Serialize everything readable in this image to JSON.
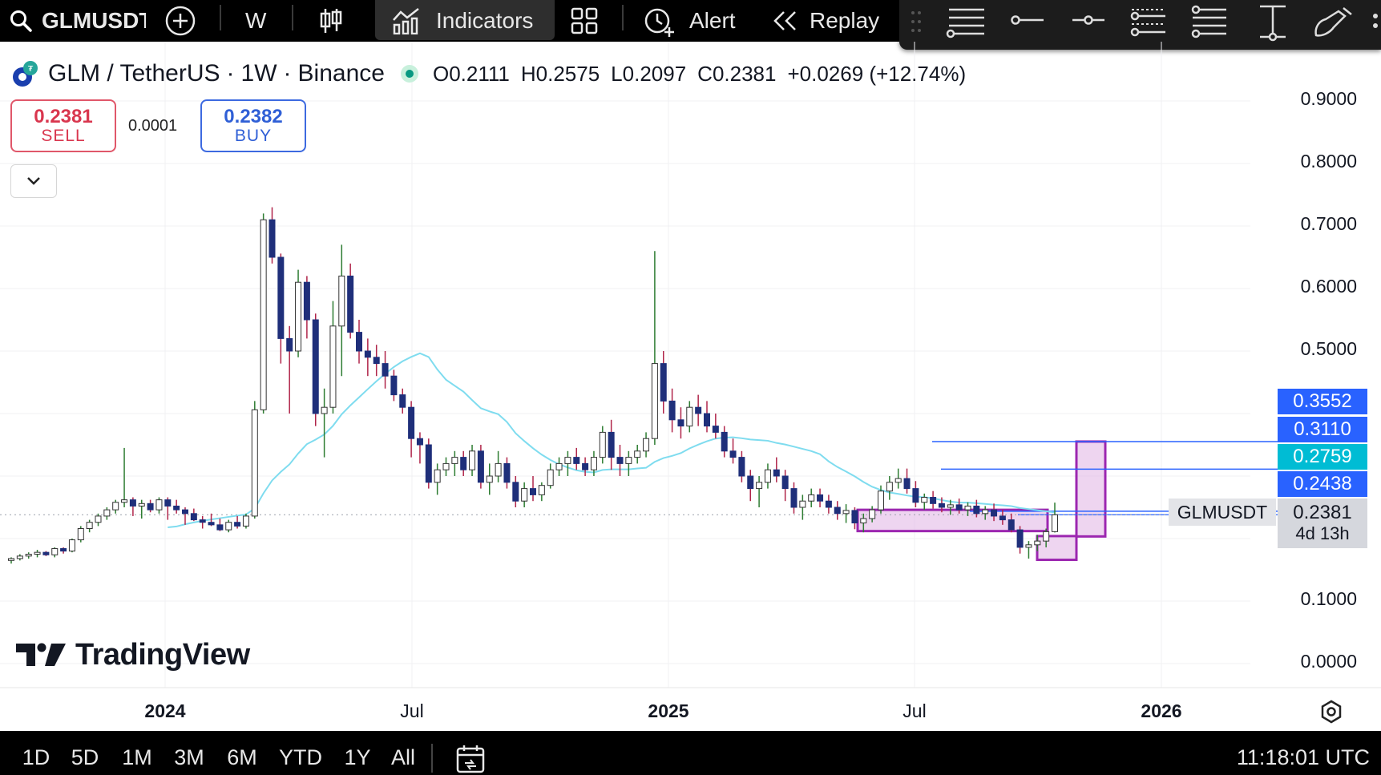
{
  "toolbar": {
    "symbol": "GLMUSDT",
    "interval": "W",
    "indicators_label": "Indicators",
    "alert_label": "Alert",
    "replay_label": "Replay",
    "icons": [
      "search-icon",
      "add-compare-icon",
      "candle-style-icon",
      "indicators-icon",
      "layout-grid-icon",
      "alert-clock-icon",
      "replay-rewind-icon"
    ]
  },
  "drawing_tools": [
    "drag-handle-icon",
    "horizontal-lines-icon",
    "horizontal-ray-icon",
    "horizontal-line-icon",
    "parallel-channel-icon",
    "fib-levels-icon",
    "vertical-ruler-icon",
    "pen-brush-icon"
  ],
  "legend": {
    "pair": "GLM / TetherUS",
    "interval": "1W",
    "exchange": "Binance",
    "separator": "·",
    "open_label": "O",
    "open": "0.2111",
    "high_label": "H",
    "high": "0.2575",
    "low_label": "L",
    "low": "0.2097",
    "close_label": "C",
    "close": "0.2381",
    "change": "+0.0269 (+12.74%)"
  },
  "trade": {
    "sell_price": "0.2381",
    "sell_label": "SELL",
    "spread": "0.0001",
    "buy_price": "0.2382",
    "buy_label": "BUY"
  },
  "price_axis": {
    "labels": [
      "0.9000",
      "0.8000",
      "0.7000",
      "0.6000",
      "0.5000",
      "0.1000",
      "0.0000"
    ],
    "tags": [
      {
        "value": "0.3552",
        "color": "#2962ff"
      },
      {
        "value": "0.3110",
        "color": "#2962ff"
      },
      {
        "value": "0.2759",
        "color": "#00bcd4"
      },
      {
        "value": "0.2438",
        "color": "#2962ff"
      }
    ],
    "symbol_tag": "GLMUSDT",
    "last_price": "0.2381",
    "countdown": "4d 13h"
  },
  "time_axis": {
    "labels": [
      {
        "text": "2024",
        "year": true
      },
      {
        "text": "Jul",
        "year": false
      },
      {
        "text": "2025",
        "year": true
      },
      {
        "text": "Jul",
        "year": false
      },
      {
        "text": "2026",
        "year": true
      }
    ]
  },
  "watermark": "TradingView",
  "bottom": {
    "ranges": [
      "1D",
      "5D",
      "1M",
      "3M",
      "6M",
      "YTD",
      "1Y",
      "All"
    ],
    "time": "11:18:01 UTC"
  },
  "colors": {
    "up_candle": "#ffffff",
    "down_candle": "#1f2f7a",
    "ma_line": "#7fdcef",
    "box_fill": "#e2b9e6",
    "box_stroke": "#9c27b0",
    "level_line": "#2962ff"
  },
  "chart_data": {
    "type": "candlestick",
    "interval": "1W",
    "ylim": [
      0,
      0.9
    ],
    "candles": [
      [
        0.165,
        0.17,
        0.16,
        0.168
      ],
      [
        0.168,
        0.175,
        0.165,
        0.172
      ],
      [
        0.172,
        0.178,
        0.168,
        0.175
      ],
      [
        0.175,
        0.182,
        0.17,
        0.178
      ],
      [
        0.178,
        0.18,
        0.172,
        0.174
      ],
      [
        0.174,
        0.186,
        0.17,
        0.184
      ],
      [
        0.184,
        0.186,
        0.176,
        0.18
      ],
      [
        0.18,
        0.2,
        0.178,
        0.198
      ],
      [
        0.198,
        0.22,
        0.194,
        0.216
      ],
      [
        0.216,
        0.23,
        0.21,
        0.226
      ],
      [
        0.226,
        0.24,
        0.22,
        0.236
      ],
      [
        0.236,
        0.25,
        0.23,
        0.246
      ],
      [
        0.246,
        0.262,
        0.24,
        0.258
      ],
      [
        0.258,
        0.345,
        0.25,
        0.262
      ],
      [
        0.262,
        0.266,
        0.236,
        0.252
      ],
      [
        0.252,
        0.262,
        0.232,
        0.256
      ],
      [
        0.256,
        0.262,
        0.242,
        0.246
      ],
      [
        0.246,
        0.266,
        0.24,
        0.262
      ],
      [
        0.262,
        0.266,
        0.23,
        0.252
      ],
      [
        0.252,
        0.262,
        0.24,
        0.246
      ],
      [
        0.246,
        0.25,
        0.222,
        0.24
      ],
      [
        0.24,
        0.248,
        0.228,
        0.23
      ],
      [
        0.23,
        0.236,
        0.216,
        0.226
      ],
      [
        0.226,
        0.24,
        0.22,
        0.222
      ],
      [
        0.222,
        0.232,
        0.212,
        0.214
      ],
      [
        0.214,
        0.23,
        0.21,
        0.226
      ],
      [
        0.226,
        0.236,
        0.216,
        0.22
      ],
      [
        0.22,
        0.24,
        0.216,
        0.236
      ],
      [
        0.236,
        0.42,
        0.232,
        0.406
      ],
      [
        0.406,
        0.72,
        0.4,
        0.71
      ],
      [
        0.71,
        0.73,
        0.64,
        0.65
      ],
      [
        0.65,
        0.656,
        0.48,
        0.52
      ],
      [
        0.52,
        0.54,
        0.4,
        0.5
      ],
      [
        0.5,
        0.63,
        0.49,
        0.61
      ],
      [
        0.61,
        0.62,
        0.52,
        0.55
      ],
      [
        0.55,
        0.56,
        0.38,
        0.4
      ],
      [
        0.4,
        0.44,
        0.33,
        0.41
      ],
      [
        0.41,
        0.58,
        0.4,
        0.54
      ],
      [
        0.54,
        0.67,
        0.46,
        0.62
      ],
      [
        0.62,
        0.64,
        0.52,
        0.53
      ],
      [
        0.53,
        0.55,
        0.48,
        0.5
      ],
      [
        0.5,
        0.52,
        0.46,
        0.49
      ],
      [
        0.49,
        0.51,
        0.46,
        0.48
      ],
      [
        0.48,
        0.5,
        0.44,
        0.46
      ],
      [
        0.46,
        0.47,
        0.42,
        0.43
      ],
      [
        0.43,
        0.44,
        0.4,
        0.41
      ],
      [
        0.41,
        0.42,
        0.33,
        0.36
      ],
      [
        0.36,
        0.37,
        0.32,
        0.35
      ],
      [
        0.35,
        0.36,
        0.28,
        0.29
      ],
      [
        0.29,
        0.32,
        0.27,
        0.31
      ],
      [
        0.31,
        0.33,
        0.3,
        0.32
      ],
      [
        0.32,
        0.34,
        0.3,
        0.33
      ],
      [
        0.33,
        0.34,
        0.3,
        0.31
      ],
      [
        0.31,
        0.35,
        0.3,
        0.34
      ],
      [
        0.34,
        0.35,
        0.28,
        0.29
      ],
      [
        0.29,
        0.32,
        0.27,
        0.3
      ],
      [
        0.3,
        0.34,
        0.29,
        0.32
      ],
      [
        0.32,
        0.33,
        0.28,
        0.29
      ],
      [
        0.29,
        0.3,
        0.25,
        0.26
      ],
      [
        0.26,
        0.29,
        0.25,
        0.28
      ],
      [
        0.28,
        0.3,
        0.26,
        0.27
      ],
      [
        0.27,
        0.29,
        0.26,
        0.285
      ],
      [
        0.285,
        0.32,
        0.28,
        0.31
      ],
      [
        0.31,
        0.33,
        0.3,
        0.32
      ],
      [
        0.32,
        0.34,
        0.3,
        0.33
      ],
      [
        0.33,
        0.345,
        0.31,
        0.32
      ],
      [
        0.32,
        0.33,
        0.3,
        0.31
      ],
      [
        0.31,
        0.34,
        0.3,
        0.33
      ],
      [
        0.33,
        0.38,
        0.32,
        0.37
      ],
      [
        0.37,
        0.39,
        0.31,
        0.33
      ],
      [
        0.33,
        0.35,
        0.3,
        0.32
      ],
      [
        0.32,
        0.34,
        0.3,
        0.33
      ],
      [
        0.33,
        0.35,
        0.32,
        0.34
      ],
      [
        0.34,
        0.37,
        0.33,
        0.36
      ],
      [
        0.36,
        0.66,
        0.35,
        0.48
      ],
      [
        0.48,
        0.5,
        0.4,
        0.42
      ],
      [
        0.42,
        0.44,
        0.37,
        0.39
      ],
      [
        0.39,
        0.41,
        0.36,
        0.38
      ],
      [
        0.38,
        0.42,
        0.37,
        0.41
      ],
      [
        0.41,
        0.43,
        0.38,
        0.4
      ],
      [
        0.4,
        0.42,
        0.37,
        0.38
      ],
      [
        0.38,
        0.4,
        0.36,
        0.37
      ],
      [
        0.37,
        0.38,
        0.33,
        0.34
      ],
      [
        0.34,
        0.36,
        0.32,
        0.33
      ],
      [
        0.33,
        0.34,
        0.29,
        0.3
      ],
      [
        0.3,
        0.31,
        0.26,
        0.28
      ],
      [
        0.28,
        0.3,
        0.25,
        0.29
      ],
      [
        0.29,
        0.32,
        0.28,
        0.31
      ],
      [
        0.31,
        0.33,
        0.29,
        0.3
      ],
      [
        0.3,
        0.31,
        0.26,
        0.28
      ],
      [
        0.28,
        0.29,
        0.24,
        0.25
      ],
      [
        0.25,
        0.27,
        0.23,
        0.26
      ],
      [
        0.26,
        0.28,
        0.25,
        0.27
      ],
      [
        0.27,
        0.28,
        0.25,
        0.26
      ],
      [
        0.26,
        0.27,
        0.24,
        0.25
      ],
      [
        0.25,
        0.26,
        0.23,
        0.24
      ],
      [
        0.24,
        0.255,
        0.225,
        0.245
      ],
      [
        0.245,
        0.25,
        0.215,
        0.225
      ],
      [
        0.225,
        0.24,
        0.21,
        0.232
      ],
      [
        0.232,
        0.252,
        0.226,
        0.246
      ],
      [
        0.246,
        0.285,
        0.24,
        0.276
      ],
      [
        0.276,
        0.3,
        0.262,
        0.29
      ],
      [
        0.29,
        0.312,
        0.28,
        0.296
      ],
      [
        0.296,
        0.312,
        0.272,
        0.28
      ],
      [
        0.28,
        0.292,
        0.25,
        0.258
      ],
      [
        0.258,
        0.272,
        0.246,
        0.266
      ],
      [
        0.266,
        0.276,
        0.248,
        0.256
      ],
      [
        0.256,
        0.266,
        0.242,
        0.25
      ],
      [
        0.25,
        0.262,
        0.238,
        0.254
      ],
      [
        0.254,
        0.264,
        0.24,
        0.246
      ],
      [
        0.246,
        0.258,
        0.236,
        0.252
      ],
      [
        0.252,
        0.262,
        0.234,
        0.24
      ],
      [
        0.24,
        0.252,
        0.23,
        0.246
      ],
      [
        0.246,
        0.256,
        0.228,
        0.236
      ],
      [
        0.236,
        0.246,
        0.222,
        0.23
      ],
      [
        0.23,
        0.24,
        0.21,
        0.214
      ],
      [
        0.214,
        0.22,
        0.176,
        0.186
      ],
      [
        0.186,
        0.196,
        0.168,
        0.19
      ],
      [
        0.19,
        0.206,
        0.18,
        0.196
      ],
      [
        0.196,
        0.216,
        0.186,
        0.211
      ],
      [
        0.2111,
        0.2575,
        0.2097,
        0.2381
      ]
    ],
    "moving_average_start": 18,
    "levels": [
      0.3552,
      0.311,
      0.2759,
      0.2438
    ]
  }
}
